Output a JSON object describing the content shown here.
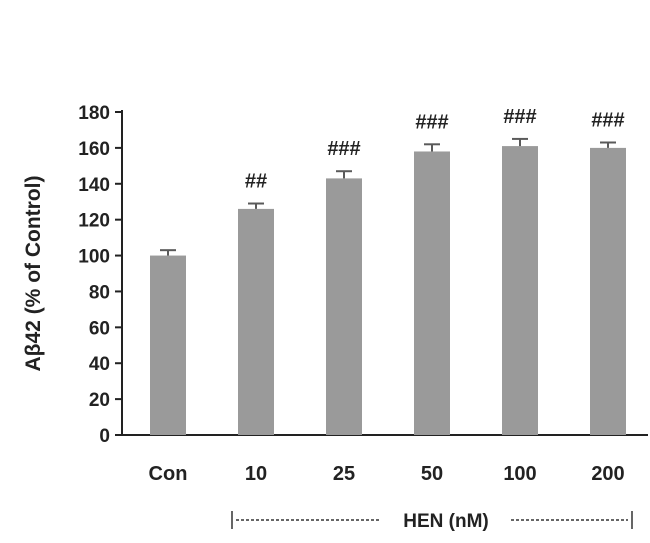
{
  "chart_data": {
    "type": "bar",
    "ylabel": "Aβ42 (% of Control)",
    "xlabel": "",
    "ylim": [
      0,
      180
    ],
    "yticks": [
      0,
      20,
      40,
      60,
      80,
      100,
      120,
      140,
      160,
      180
    ],
    "categories": [
      "Con",
      "10",
      "25",
      "50",
      "100",
      "200"
    ],
    "values": [
      100,
      126,
      143,
      158,
      161,
      160
    ],
    "errors": [
      3,
      3,
      4,
      4,
      4,
      3
    ],
    "significance": [
      "",
      "##",
      "###",
      "###",
      "###",
      "###"
    ],
    "group_bracket": {
      "label": "HEN (nM)",
      "spans_categories": [
        "10",
        "200"
      ]
    },
    "colors": {
      "bar": "#9a9a9a",
      "error": "#5a5a5a",
      "axis": "#222222"
    },
    "grid": false,
    "legend": "none"
  }
}
